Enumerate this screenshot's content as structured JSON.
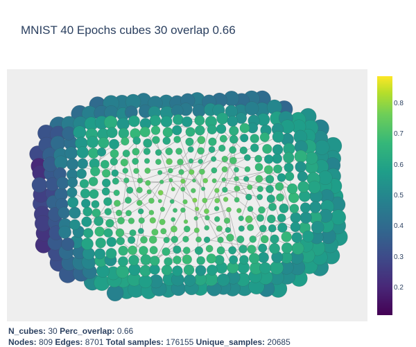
{
  "title": "MNIST 40 Epochs cubes 30 overlap 0.66",
  "colorbar": {
    "ticks": [
      "0.8",
      "0.7",
      "0.6",
      "0.5",
      "0.4",
      "0.3",
      "0.2"
    ],
    "range": [
      0.1,
      0.88
    ],
    "colorscale": "Viridis"
  },
  "caption": {
    "n_cubes_label": "N_cubes:",
    "n_cubes_value": "30",
    "perc_overlap_label": "Perc_overlap:",
    "perc_overlap_value": "0.66",
    "nodes_label": "Nodes:",
    "nodes_value": "809",
    "edges_label": "Edges:",
    "edges_value": "8701",
    "total_samples_label": "Total samples:",
    "total_samples_value": "176155",
    "unique_samples_label": "Unique_samples:",
    "unique_samples_value": "20685"
  },
  "chart_data": {
    "type": "scatter",
    "title": "MNIST 40 Epochs cubes 30 overlap 0.66",
    "description_kind": "mapper network graph",
    "nodes": 809,
    "edges": 8701,
    "color_range": [
      0.1,
      0.88
    ],
    "colorscale": "Viridis",
    "node_color": "#b0b0b0",
    "edge_color": "#b0b0b0",
    "background": "#eeeeee"
  }
}
